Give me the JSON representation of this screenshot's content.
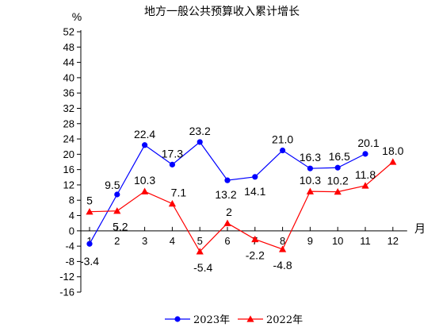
{
  "chart_data": {
    "type": "line",
    "title": "地方一般公共预算收入累计增长",
    "ylabel": "%",
    "xlabel": "月",
    "ylim": [
      -16,
      52
    ],
    "y_ticks": [
      -16,
      -12,
      -8,
      -4,
      0,
      4,
      8,
      12,
      16,
      20,
      24,
      28,
      32,
      36,
      40,
      44,
      48,
      52
    ],
    "categories": [
      "1",
      "2",
      "3",
      "4",
      "5",
      "6",
      "7",
      "8",
      "9",
      "10",
      "11",
      "12"
    ],
    "legend_position": "bottom",
    "series": [
      {
        "name": "2023年",
        "color": "#0000ff",
        "marker": "circle",
        "values": [
          -3.4,
          9.5,
          22.4,
          17.3,
          23.2,
          13.2,
          14.1,
          21.0,
          16.3,
          16.5,
          20.1,
          null
        ],
        "labels": [
          "-3.4",
          "9.5",
          "22.4",
          "17.3",
          "23.2",
          "13.2",
          "14.1",
          "21.0",
          "16.3",
          "16.5",
          "20.1",
          ""
        ]
      },
      {
        "name": "2022年",
        "color": "#ff0000",
        "marker": "triangle",
        "values": [
          5,
          5.2,
          10.3,
          7.1,
          -5.4,
          2,
          -2.2,
          -4.8,
          10.3,
          10.2,
          11.8,
          18.0
        ],
        "labels": [
          "5",
          "5.2",
          "10.3",
          "7.1",
          "-5.4",
          "2",
          "-2.2",
          "-4.8",
          "10.3",
          "10.2",
          "11.8",
          "18.0"
        ]
      }
    ]
  }
}
